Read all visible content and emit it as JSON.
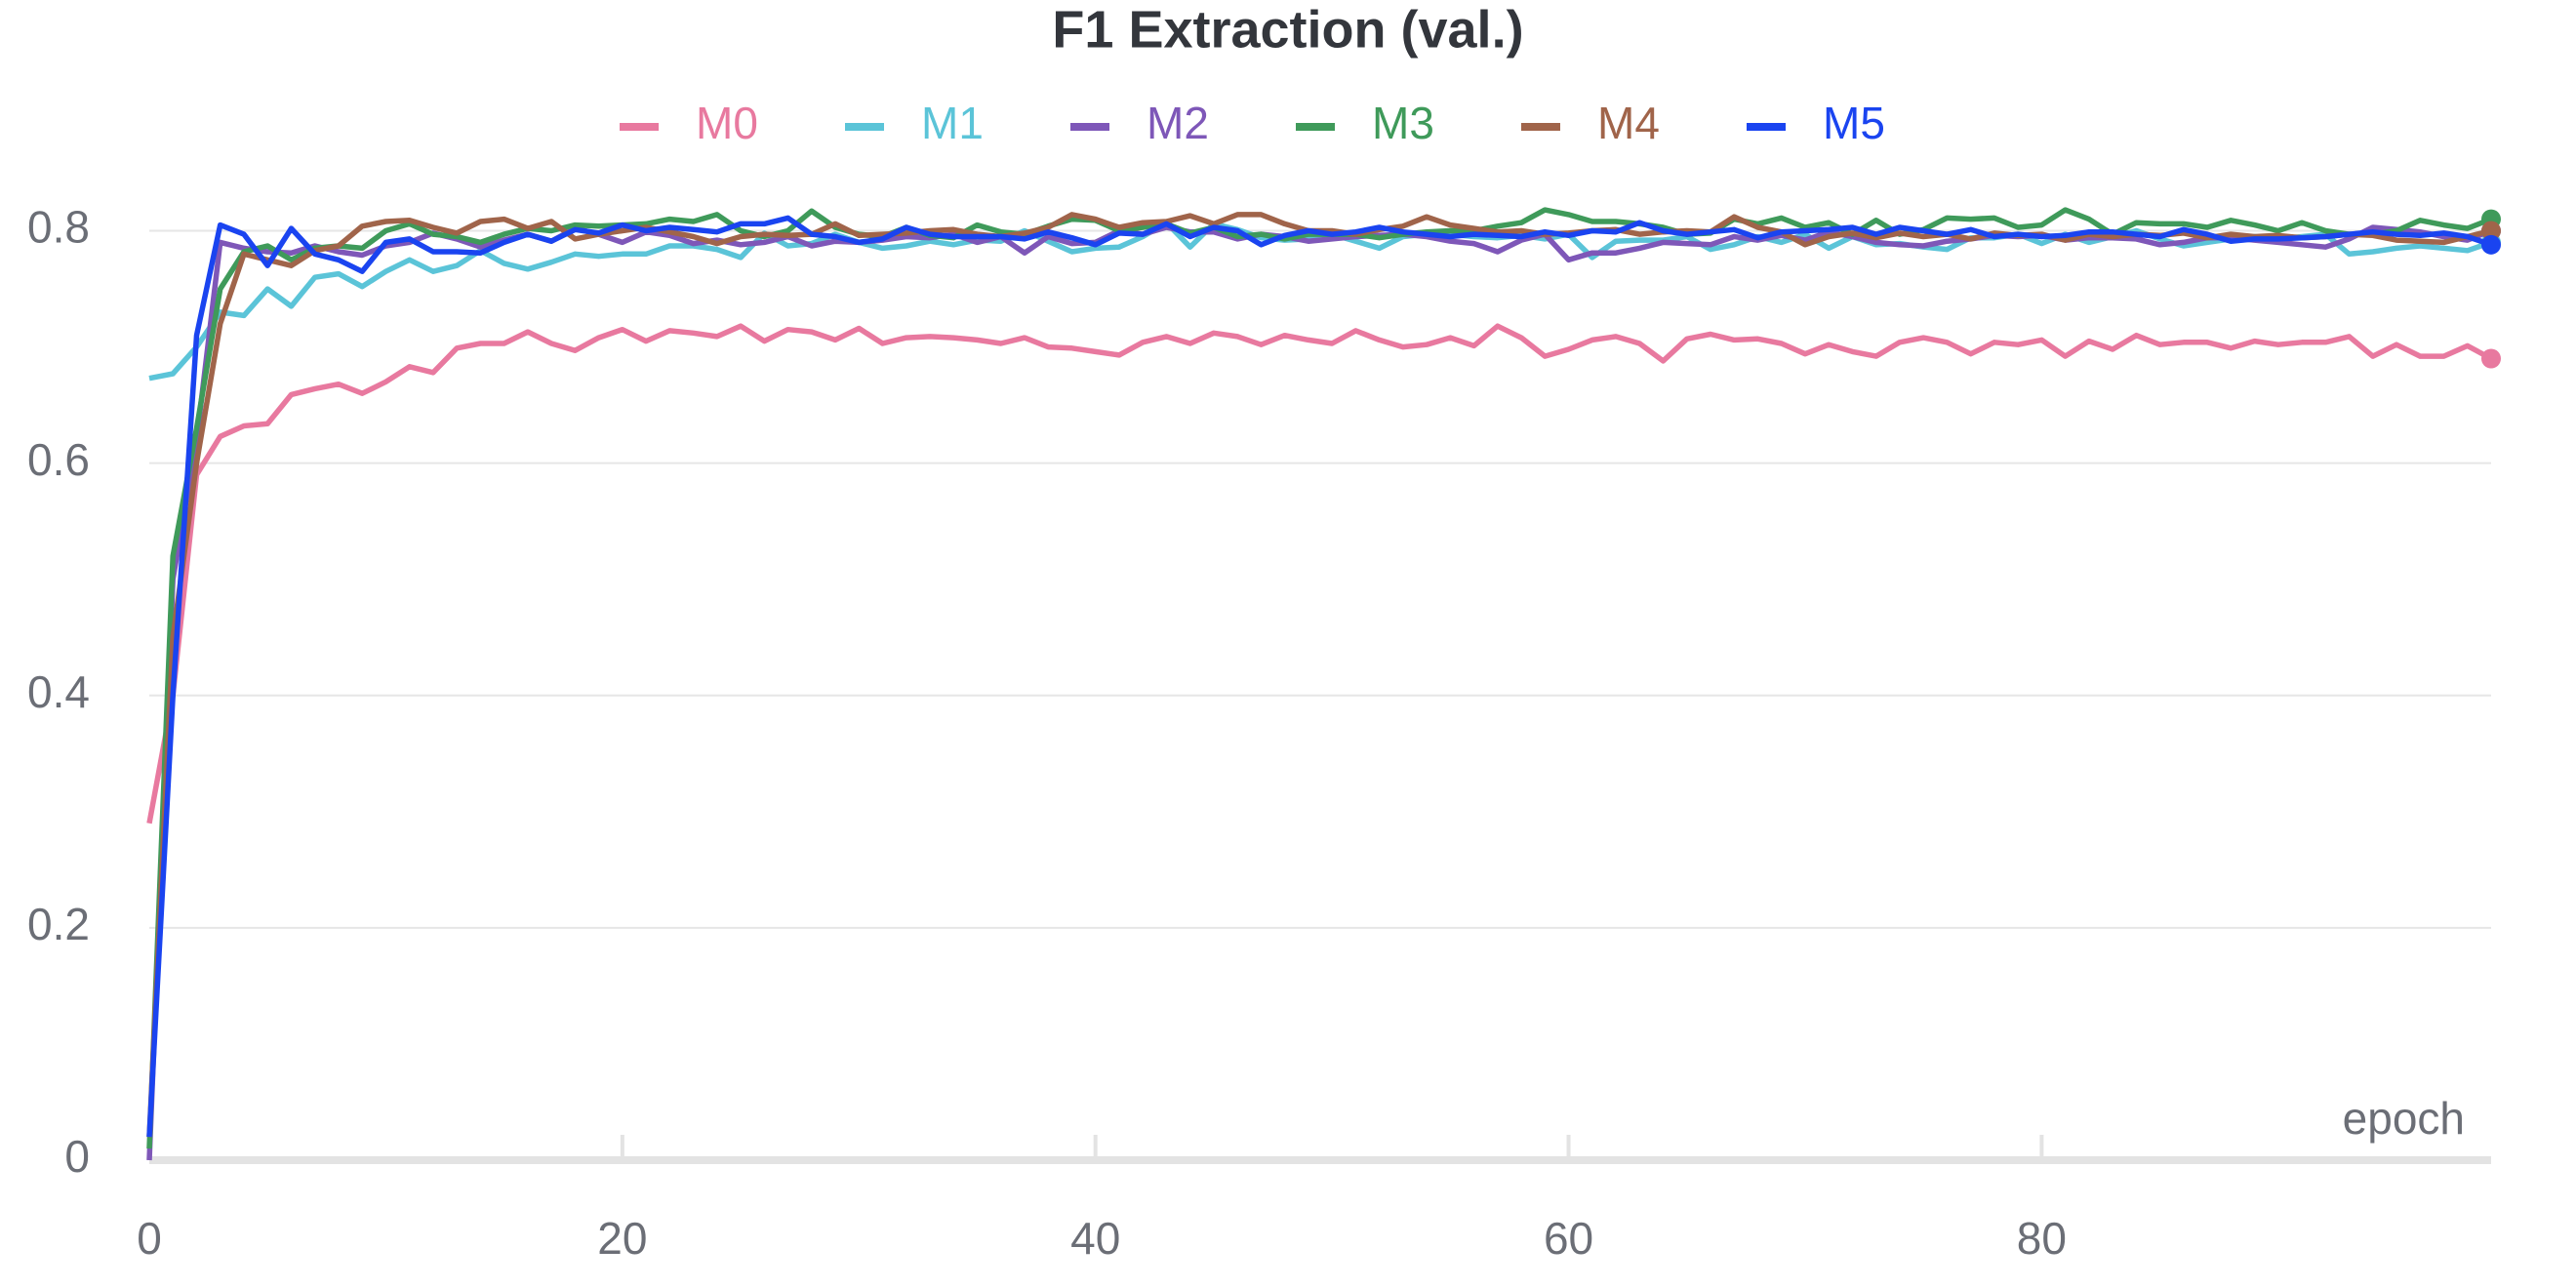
{
  "chart_data": {
    "type": "line",
    "title": "F1 Extraction (val.)",
    "x_label": "epoch",
    "x": [
      0,
      1,
      2,
      3,
      4,
      5,
      6,
      7,
      8,
      9,
      10,
      11,
      12,
      13,
      14,
      15,
      16,
      17,
      18,
      19,
      20,
      21,
      22,
      23,
      24,
      25,
      26,
      27,
      28,
      29,
      30,
      31,
      32,
      33,
      34,
      35,
      36,
      37,
      38,
      39,
      40,
      41,
      42,
      43,
      44,
      45,
      46,
      47,
      48,
      49,
      50,
      51,
      52,
      53,
      54,
      55,
      56,
      57,
      58,
      59,
      60,
      61,
      62,
      63,
      64,
      65,
      66,
      67,
      68,
      69,
      70,
      71,
      72,
      73,
      74,
      75,
      76,
      77,
      78,
      79,
      80,
      81,
      82,
      83,
      84,
      85,
      86,
      87,
      88,
      89,
      90,
      91,
      92,
      93,
      94,
      95,
      96,
      97,
      98,
      99
    ],
    "xlim": [
      0,
      99
    ],
    "xticks": [
      0,
      20,
      40,
      60,
      80
    ],
    "ylim": [
      0,
      0.85
    ],
    "yticks": [
      0,
      0.2,
      0.4,
      0.6,
      0.8
    ],
    "grid": true,
    "legend_position": "top",
    "series": [
      {
        "name": "M0",
        "color": "#e8799f",
        "values": [
          0.29,
          0.4,
          0.59,
          0.623,
          0.632,
          0.634,
          0.659,
          0.664,
          0.668,
          0.66,
          0.67,
          0.683,
          0.678,
          0.699,
          0.703,
          0.703,
          0.713,
          0.703,
          0.697,
          0.708,
          0.715,
          0.705,
          0.714,
          0.712,
          0.709,
          0.718,
          0.705,
          0.715,
          0.713,
          0.706,
          0.716,
          0.703,
          0.708,
          0.709,
          0.708,
          0.706,
          0.703,
          0.708,
          0.7,
          0.699,
          0.696,
          0.693,
          0.704,
          0.709,
          0.703,
          0.712,
          0.709,
          0.702,
          0.71,
          0.706,
          0.703,
          0.714,
          0.706,
          0.7,
          0.702,
          0.708,
          0.701,
          0.718,
          0.708,
          0.692,
          0.698,
          0.706,
          0.709,
          0.703,
          0.688,
          0.707,
          0.711,
          0.706,
          0.707,
          0.703,
          0.694,
          0.702,
          0.696,
          0.692,
          0.704,
          0.708,
          0.704,
          0.694,
          0.704,
          0.702,
          0.706,
          0.692,
          0.705,
          0.698,
          0.71,
          0.702,
          0.704,
          0.704,
          0.699,
          0.705,
          0.702,
          0.704,
          0.704,
          0.709,
          0.692,
          0.702,
          0.692,
          0.692,
          0.701,
          0.69
        ]
      },
      {
        "name": "M1",
        "color": "#5bc4d8",
        "values": [
          0.673,
          0.677,
          0.7,
          0.73,
          0.727,
          0.75,
          0.735,
          0.76,
          0.763,
          0.752,
          0.765,
          0.775,
          0.765,
          0.77,
          0.783,
          0.772,
          0.767,
          0.773,
          0.78,
          0.778,
          0.78,
          0.78,
          0.787,
          0.787,
          0.784,
          0.777,
          0.798,
          0.787,
          0.789,
          0.797,
          0.79,
          0.785,
          0.787,
          0.791,
          0.788,
          0.792,
          0.791,
          0.8,
          0.791,
          0.782,
          0.785,
          0.786,
          0.795,
          0.807,
          0.786,
          0.806,
          0.801,
          0.794,
          0.792,
          0.793,
          0.797,
          0.791,
          0.785,
          0.795,
          0.797,
          0.797,
          0.795,
          0.794,
          0.796,
          0.793,
          0.797,
          0.777,
          0.791,
          0.792,
          0.792,
          0.795,
          0.784,
          0.788,
          0.795,
          0.79,
          0.797,
          0.785,
          0.795,
          0.788,
          0.789,
          0.786,
          0.784,
          0.794,
          0.794,
          0.797,
          0.789,
          0.797,
          0.79,
          0.795,
          0.8,
          0.793,
          0.787,
          0.79,
          0.793,
          0.795,
          0.793,
          0.795,
          0.797,
          0.78,
          0.782,
          0.785,
          0.787,
          0.785,
          0.783,
          0.79
        ]
      },
      {
        "name": "M2",
        "color": "#7e57b8",
        "values": [
          0.0,
          0.5,
          0.62,
          0.79,
          0.785,
          0.782,
          0.781,
          0.787,
          0.782,
          0.779,
          0.787,
          0.79,
          0.798,
          0.793,
          0.786,
          0.792,
          0.797,
          0.791,
          0.802,
          0.797,
          0.79,
          0.799,
          0.796,
          0.789,
          0.792,
          0.788,
          0.79,
          0.795,
          0.787,
          0.791,
          0.79,
          0.792,
          0.795,
          0.794,
          0.797,
          0.79,
          0.795,
          0.781,
          0.795,
          0.789,
          0.79,
          0.8,
          0.797,
          0.803,
          0.799,
          0.799,
          0.793,
          0.797,
          0.795,
          0.791,
          0.793,
          0.795,
          0.796,
          0.797,
          0.795,
          0.791,
          0.789,
          0.782,
          0.792,
          0.797,
          0.775,
          0.781,
          0.781,
          0.785,
          0.79,
          0.789,
          0.788,
          0.795,
          0.792,
          0.796,
          0.792,
          0.799,
          0.795,
          0.79,
          0.788,
          0.787,
          0.791,
          0.793,
          0.796,
          0.795,
          0.796,
          0.792,
          0.794,
          0.794,
          0.793,
          0.788,
          0.79,
          0.794,
          0.794,
          0.792,
          0.79,
          0.788,
          0.786,
          0.793,
          0.803,
          0.801,
          0.799,
          0.795,
          0.792,
          0.8
        ]
      },
      {
        "name": "M3",
        "color": "#3f9a5a",
        "values": [
          0.01,
          0.52,
          0.63,
          0.75,
          0.782,
          0.787,
          0.775,
          0.785,
          0.787,
          0.785,
          0.8,
          0.806,
          0.797,
          0.795,
          0.79,
          0.797,
          0.802,
          0.8,
          0.805,
          0.804,
          0.805,
          0.806,
          0.81,
          0.808,
          0.814,
          0.8,
          0.795,
          0.8,
          0.817,
          0.803,
          0.797,
          0.795,
          0.803,
          0.796,
          0.794,
          0.805,
          0.799,
          0.797,
          0.804,
          0.81,
          0.809,
          0.8,
          0.803,
          0.806,
          0.798,
          0.803,
          0.795,
          0.797,
          0.793,
          0.797,
          0.797,
          0.797,
          0.794,
          0.797,
          0.799,
          0.8,
          0.8,
          0.804,
          0.807,
          0.818,
          0.814,
          0.808,
          0.808,
          0.806,
          0.803,
          0.797,
          0.798,
          0.81,
          0.806,
          0.811,
          0.803,
          0.807,
          0.797,
          0.809,
          0.797,
          0.801,
          0.811,
          0.81,
          0.811,
          0.803,
          0.805,
          0.818,
          0.81,
          0.797,
          0.807,
          0.806,
          0.806,
          0.803,
          0.809,
          0.805,
          0.8,
          0.807,
          0.8,
          0.797,
          0.797,
          0.8,
          0.809,
          0.805,
          0.802,
          0.81
        ]
      },
      {
        "name": "M4",
        "color": "#a0644a",
        "values": [
          0.02,
          0.45,
          0.6,
          0.72,
          0.78,
          0.775,
          0.77,
          0.783,
          0.787,
          0.804,
          0.808,
          0.809,
          0.803,
          0.798,
          0.808,
          0.81,
          0.802,
          0.808,
          0.793,
          0.797,
          0.8,
          0.803,
          0.799,
          0.795,
          0.789,
          0.795,
          0.797,
          0.796,
          0.797,
          0.806,
          0.796,
          0.797,
          0.798,
          0.8,
          0.801,
          0.797,
          0.795,
          0.798,
          0.803,
          0.814,
          0.81,
          0.803,
          0.807,
          0.808,
          0.813,
          0.806,
          0.814,
          0.814,
          0.806,
          0.8,
          0.8,
          0.797,
          0.801,
          0.804,
          0.812,
          0.805,
          0.802,
          0.799,
          0.8,
          0.797,
          0.798,
          0.8,
          0.801,
          0.797,
          0.799,
          0.8,
          0.799,
          0.812,
          0.803,
          0.799,
          0.788,
          0.795,
          0.798,
          0.794,
          0.798,
          0.795,
          0.797,
          0.793,
          0.798,
          0.796,
          0.797,
          0.792,
          0.797,
          0.795,
          0.797,
          0.796,
          0.798,
          0.794,
          0.797,
          0.795,
          0.796,
          0.794,
          0.795,
          0.797,
          0.796,
          0.792,
          0.791,
          0.79,
          0.795,
          0.8
        ]
      },
      {
        "name": "M5",
        "color": "#1a44f0",
        "values": [
          0.02,
          0.4,
          0.71,
          0.805,
          0.797,
          0.77,
          0.802,
          0.78,
          0.775,
          0.765,
          0.79,
          0.793,
          0.782,
          0.782,
          0.781,
          0.79,
          0.797,
          0.791,
          0.801,
          0.798,
          0.805,
          0.8,
          0.803,
          0.801,
          0.799,
          0.806,
          0.806,
          0.811,
          0.797,
          0.795,
          0.79,
          0.793,
          0.803,
          0.797,
          0.795,
          0.795,
          0.795,
          0.793,
          0.799,
          0.794,
          0.788,
          0.798,
          0.797,
          0.806,
          0.795,
          0.803,
          0.8,
          0.788,
          0.796,
          0.8,
          0.797,
          0.799,
          0.803,
          0.799,
          0.797,
          0.795,
          0.797,
          0.796,
          0.795,
          0.799,
          0.796,
          0.8,
          0.799,
          0.807,
          0.8,
          0.797,
          0.799,
          0.801,
          0.794,
          0.799,
          0.8,
          0.801,
          0.803,
          0.797,
          0.803,
          0.8,
          0.797,
          0.801,
          0.795,
          0.797,
          0.795,
          0.796,
          0.799,
          0.799,
          0.797,
          0.795,
          0.801,
          0.797,
          0.791,
          0.793,
          0.793,
          0.794,
          0.795,
          0.797,
          0.799,
          0.797,
          0.796,
          0.798,
          0.795,
          0.788
        ]
      }
    ]
  }
}
